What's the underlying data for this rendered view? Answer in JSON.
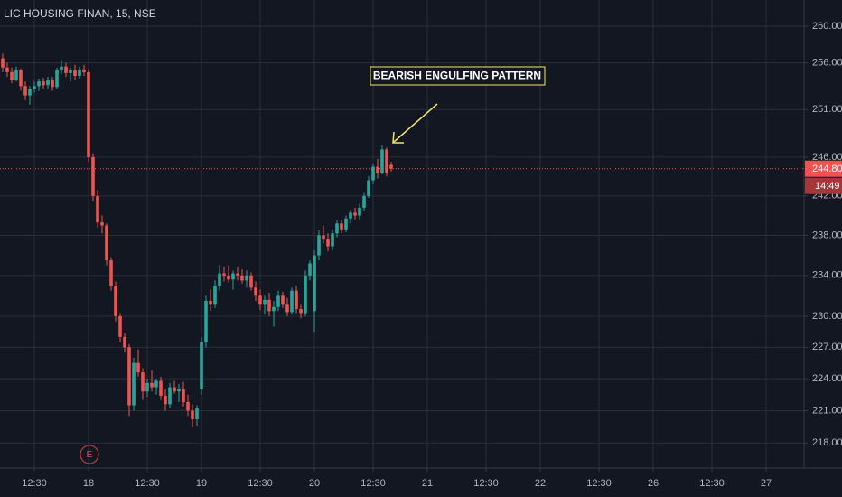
{
  "chart_data": {
    "type": "candlestick",
    "title": "LIC HOUSING FINAN, 15, NSE",
    "annotation": "BEARISH ENGULFING PATTERN",
    "event_marker": "E",
    "up_color": "#26a69a",
    "down_color": "#ef5350",
    "log_scale": true,
    "grid": true,
    "ylim": [
      215.7,
      262.9
    ],
    "yticks": [
      {
        "value": 260,
        "label": "260.00"
      },
      {
        "value": 256,
        "label": "256.00"
      },
      {
        "value": 251,
        "label": "251.00"
      },
      {
        "value": 246,
        "label": "246.00"
      },
      {
        "value": 242,
        "label": "242.00"
      },
      {
        "value": 238,
        "label": "238.00"
      },
      {
        "value": 234,
        "label": "234.00"
      },
      {
        "value": 230,
        "label": "230.00"
      },
      {
        "value": 227,
        "label": "227.00"
      },
      {
        "value": 224,
        "label": "224.00"
      },
      {
        "value": 221,
        "label": "221.00"
      },
      {
        "value": 218,
        "label": "218.00"
      }
    ],
    "xlim": [
      5.4,
      183.4
    ],
    "xticks": [
      {
        "value": 13,
        "label": "12:30"
      },
      {
        "value": 25,
        "label": "18"
      },
      {
        "value": 38,
        "label": "12:30"
      },
      {
        "value": 50,
        "label": "19"
      },
      {
        "value": 63,
        "label": "12:30"
      },
      {
        "value": 75,
        "label": "20"
      },
      {
        "value": 88,
        "label": "12:30"
      },
      {
        "value": 100,
        "label": "21"
      },
      {
        "value": 113,
        "label": "12:30"
      },
      {
        "value": 125,
        "label": "22"
      },
      {
        "value": 138,
        "label": "12:30"
      },
      {
        "value": 150,
        "label": "26"
      },
      {
        "value": 163,
        "label": "12:30"
      },
      {
        "value": 175,
        "label": "27"
      }
    ],
    "last_price": {
      "value": 244.8,
      "label": "244.80"
    },
    "countdown": "14:49",
    "x": [
      6,
      7,
      8,
      9,
      10,
      11,
      12,
      13,
      14,
      15,
      16,
      17,
      18,
      19,
      20,
      21,
      22,
      23,
      24,
      25,
      26,
      27,
      28,
      29,
      30,
      31,
      32,
      33,
      34,
      35,
      36,
      37,
      38,
      39,
      40,
      41,
      42,
      43,
      44,
      45,
      46,
      47,
      48,
      49,
      50,
      51,
      52,
      53,
      54,
      55,
      56,
      57,
      58,
      59,
      60,
      61,
      62,
      63,
      64,
      65,
      66,
      67,
      68,
      69,
      70,
      71,
      72,
      73,
      74,
      75,
      76,
      77,
      78,
      79,
      80,
      81,
      82,
      83,
      84,
      85,
      86,
      87,
      88,
      89,
      90,
      91,
      92
    ],
    "open": [
      256.5,
      255.5,
      255,
      254.2,
      255.2,
      253.5,
      252.5,
      253.2,
      253.5,
      254,
      253.6,
      254.2,
      253.4,
      255.2,
      255.6,
      254.9,
      255.2,
      254.6,
      255.3,
      255,
      246,
      242,
      239.3,
      239,
      235.5,
      233,
      230,
      228,
      227,
      221.5,
      225.5,
      224.6,
      222.8,
      223.6,
      223.2,
      223.8,
      222.4,
      221.6,
      223.2,
      222.8,
      223,
      221.8,
      221,
      220.2,
      223,
      227.5,
      231.5,
      231.2,
      233,
      234.2,
      234,
      233.6,
      234.2,
      234,
      233.5,
      234,
      232.8,
      232,
      231.2,
      231.6,
      230.5,
      230.9,
      232,
      231.2,
      230.4,
      232.5,
      230.7,
      230.3,
      234,
      230.5,
      236,
      238,
      237.6,
      236.9,
      238.2,
      239.2,
      238.6,
      239.7,
      240.3,
      240,
      240.8,
      242,
      243.6,
      245,
      244.4,
      246.8,
      245.2
    ],
    "high": [
      257,
      256,
      255.5,
      255.6,
      255.4,
      254,
      253.5,
      254,
      254.3,
      254.4,
      254.5,
      254.5,
      255.5,
      256.3,
      256,
      255.5,
      255.8,
      255.6,
      255.8,
      255.3,
      246.4,
      242.6,
      240,
      239.2,
      235.8,
      233.4,
      230.3,
      228.4,
      227.3,
      226,
      226.8,
      225,
      224,
      224.8,
      224,
      224.2,
      223,
      223.6,
      223.8,
      223.5,
      223.7,
      222.5,
      221.6,
      221.5,
      228,
      232,
      232.6,
      233.5,
      235,
      234.8,
      235,
      234.5,
      234.8,
      234.6,
      234.5,
      234.3,
      233.4,
      232.6,
      232,
      232.3,
      231.5,
      232.5,
      232.4,
      231.8,
      232.8,
      233,
      231.2,
      234.5,
      235.5,
      236.5,
      238.5,
      239,
      238.2,
      238.6,
      239.5,
      239.6,
      240,
      240.6,
      240.8,
      241.2,
      242.3,
      244,
      245.3,
      245.8,
      247.2,
      247,
      245.5
    ],
    "low": [
      255,
      254.5,
      253.8,
      254,
      253,
      252,
      251.5,
      252.8,
      253,
      253.2,
      253.2,
      253,
      253.2,
      254.8,
      254.5,
      254,
      254.2,
      254.3,
      254.6,
      245.5,
      241.5,
      238.8,
      238.2,
      235,
      232.5,
      229.5,
      227.5,
      226.5,
      220.5,
      221,
      224.2,
      222,
      222.3,
      222.8,
      222.5,
      222,
      221,
      221.2,
      222.6,
      221.8,
      221.4,
      220.5,
      219.5,
      219.6,
      222.5,
      227,
      230.5,
      230.8,
      232.5,
      233.4,
      233.3,
      232.6,
      233.5,
      233.2,
      232.8,
      232.5,
      231.5,
      230.6,
      230.2,
      230,
      229,
      230.5,
      230.8,
      230,
      230.2,
      230.3,
      229.8,
      230,
      233.5,
      228.5,
      235.5,
      237.2,
      236.4,
      236.5,
      237.8,
      238.2,
      238.3,
      239.2,
      239.6,
      239.6,
      240.5,
      241.8,
      243.2,
      243.8,
      244.2,
      244,
      244.5
    ],
    "close": [
      255.5,
      255,
      254.2,
      255.2,
      253.5,
      252.5,
      253.2,
      253.5,
      254,
      253.6,
      254.2,
      253.4,
      255.2,
      255.6,
      254.9,
      255.2,
      254.6,
      255.3,
      255,
      246,
      242,
      239.3,
      239,
      235.5,
      233,
      230,
      228,
      227,
      221.5,
      225.5,
      224.6,
      222.8,
      223.6,
      223.2,
      223.8,
      222.4,
      221.6,
      223.2,
      222.8,
      223,
      221.8,
      221,
      220.2,
      221.2,
      227.5,
      231.5,
      231.2,
      233,
      234.2,
      234,
      233.6,
      234.2,
      234,
      233.5,
      234,
      232.8,
      232,
      231.2,
      231.6,
      230.5,
      230.9,
      232,
      231.2,
      230.4,
      232.5,
      230.7,
      230.3,
      234,
      235.2,
      236,
      238,
      237.6,
      236.9,
      238.2,
      239.2,
      238.6,
      239.7,
      240.3,
      240,
      240.8,
      242,
      243.6,
      245,
      244.4,
      246.8,
      244.4,
      244.8
    ]
  }
}
